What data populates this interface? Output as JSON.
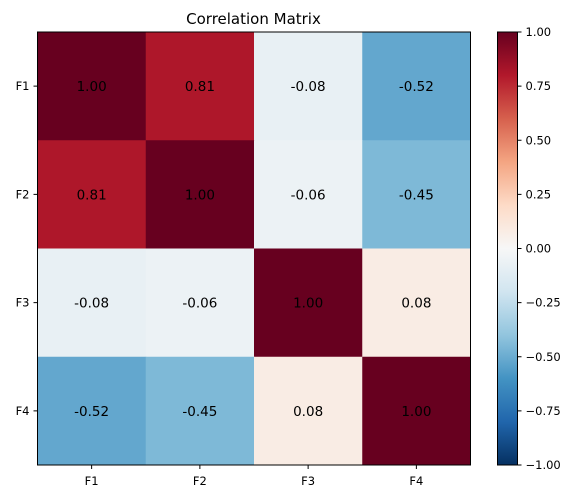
{
  "chart_data": {
    "type": "heatmap",
    "title": "Correlation Matrix",
    "xlabel": "",
    "ylabel": "",
    "x_categories": [
      "F1",
      "F2",
      "F3",
      "F4"
    ],
    "y_categories": [
      "F1",
      "F2",
      "F3",
      "F4"
    ],
    "values": [
      [
        1.0,
        0.81,
        -0.08,
        -0.52
      ],
      [
        0.81,
        1.0,
        -0.06,
        -0.45
      ],
      [
        -0.08,
        -0.06,
        1.0,
        0.08
      ],
      [
        -0.52,
        -0.45,
        0.08,
        1.0
      ]
    ],
    "cell_labels": [
      [
        "1.00",
        "0.81",
        "-0.08",
        "-0.52"
      ],
      [
        "0.81",
        "1.00",
        "-0.06",
        "-0.45"
      ],
      [
        "-0.08",
        "-0.06",
        "1.00",
        "0.08"
      ],
      [
        "-0.52",
        "-0.45",
        "0.08",
        "1.00"
      ]
    ],
    "colormap": "RdBu_r",
    "vmin": -1.0,
    "vmax": 1.0,
    "colorbar": {
      "ticks": [
        1.0,
        0.75,
        0.5,
        0.25,
        0.0,
        -0.25,
        -0.5,
        -0.75,
        -1.0
      ],
      "tick_labels": [
        "1.00",
        "0.75",
        "0.50",
        "0.25",
        "0.00",
        "−0.25",
        "−0.50",
        "−0.75",
        "−1.00"
      ]
    }
  }
}
